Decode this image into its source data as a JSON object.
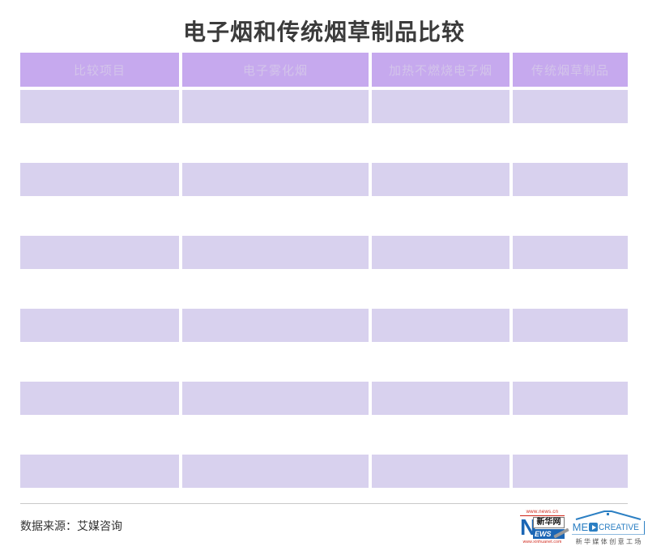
{
  "title": "电子烟和传统烟草制品比较",
  "chart_data": {
    "type": "table",
    "title": "电子烟和传统烟草制品比较",
    "columns": [
      "比较项目",
      "电子雾化烟",
      "加热不燃烧电子烟",
      "传统烟草制品"
    ],
    "rows": [
      [
        "",
        "",
        "",
        ""
      ],
      [
        "",
        "",
        "",
        ""
      ],
      [
        "",
        "",
        "",
        ""
      ],
      [
        "",
        "",
        "",
        ""
      ],
      [
        "",
        "",
        "",
        ""
      ],
      [
        "",
        "",
        "",
        ""
      ],
      [
        "",
        "",
        "",
        ""
      ],
      [
        "",
        "",
        "",
        ""
      ],
      [
        "",
        "",
        "",
        ""
      ],
      [
        "",
        "",
        "",
        ""
      ],
      [
        "",
        "",
        "",
        ""
      ]
    ]
  },
  "footer": {
    "source_label": "数据来源：艾媒咨询"
  },
  "logos": {
    "xinhuanet": {
      "top_url": "www.news.cn",
      "n_letter": "N",
      "name_cn": "新华网",
      "news_rest": "EWS",
      "bottom_url": "www.xinhuanet.com"
    },
    "medcreative": {
      "word_left": "ME",
      "word_right": "CREATIVE",
      "name_cn": "新华媒体创意工场"
    }
  },
  "colors": {
    "title_text": "#3b3b3b",
    "header_bg": "#c6a9ee",
    "header_text": "#d3c4ea",
    "row_bg": "#d8d1ee",
    "xinhua_blue": "#1b66b5",
    "xinhua_red": "#cf2417",
    "medcreative_blue": "#2b7fc3"
  }
}
